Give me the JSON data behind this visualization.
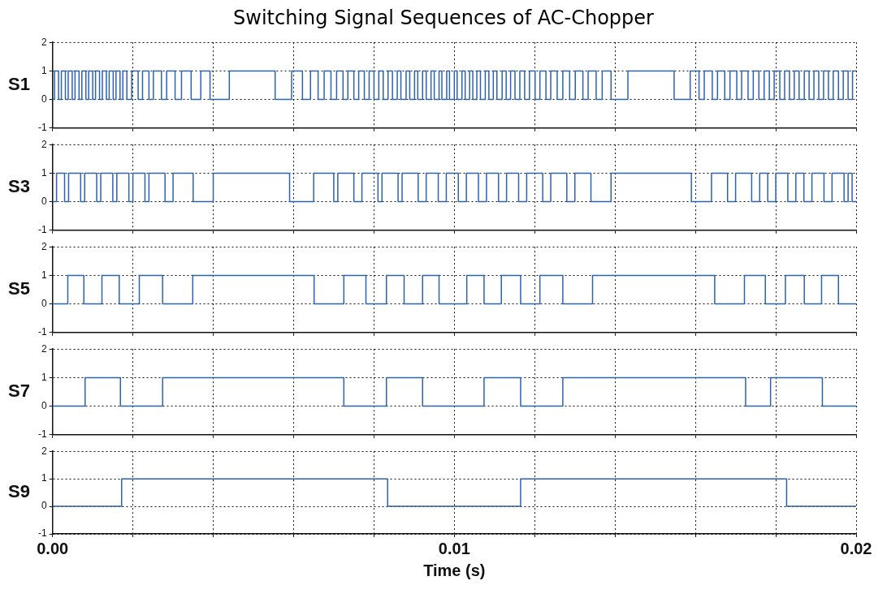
{
  "chart_data": [
    {
      "type": "step",
      "title": "Switching Signal Sequences of AC-Chopper",
      "ylabel": "S1",
      "color": "#2b63b0",
      "xlim": [
        0,
        0.02
      ],
      "ylim": [
        -1,
        2
      ],
      "yticks": [
        -1,
        0,
        1,
        2
      ],
      "grid": true,
      "tick_labels": "y",
      "xticks": [
        {
          "value": 0,
          "label": null
        },
        {
          "value": 0.002,
          "label": null
        },
        {
          "value": 0.004,
          "label": null
        },
        {
          "value": 0.006,
          "label": null
        },
        {
          "value": 0.008,
          "label": null
        },
        {
          "value": 0.01,
          "label": null
        },
        {
          "value": 0.012,
          "label": null
        },
        {
          "value": 0.014,
          "label": null
        },
        {
          "value": 0.016,
          "label": null
        },
        {
          "value": 0.018,
          "label": null
        },
        {
          "value": 0.02,
          "label": null
        }
      ],
      "x": [
        0,
        5e-05,
        0.00015,
        0.00022,
        0.00032,
        0.00039,
        0.00049,
        0.00056,
        0.00066,
        0.00073,
        0.00083,
        0.0009,
        0.001,
        0.00107,
        0.00117,
        0.00124,
        0.00134,
        0.00141,
        0.00151,
        0.00158,
        0.00168,
        0.00175,
        0.00185,
        0.00197,
        0.00213,
        0.00224,
        0.0024,
        0.00251,
        0.00271,
        0.00284,
        0.00305,
        0.00321,
        0.00345,
        0.00369,
        0.00392,
        0.0044,
        0.00554,
        0.00595,
        0.00622,
        0.00642,
        0.00661,
        0.00676,
        0.00693,
        0.00707,
        0.00723,
        0.00735,
        0.0075,
        0.00762,
        0.00776,
        0.00788,
        0.008,
        0.00812,
        0.00823,
        0.00835,
        0.00846,
        0.00858,
        0.00867,
        0.0088,
        0.00889,
        0.00901,
        0.00909,
        0.00921,
        0.0093,
        0.00942,
        0.0095,
        0.00962,
        0.00969,
        0.00981,
        0.00988,
        0.01,
        0.01007,
        0.01019,
        0.01027,
        0.01038,
        0.01046,
        0.01056,
        0.01065,
        0.01077,
        0.01086,
        0.01097,
        0.01106,
        0.01119,
        0.01129,
        0.0114,
        0.01151,
        0.01163,
        0.01175,
        0.01187,
        0.01201,
        0.01213,
        0.01228,
        0.0124,
        0.01256,
        0.0127,
        0.01287,
        0.01301,
        0.0132,
        0.01333,
        0.01353,
        0.01368,
        0.0139,
        0.01432,
        0.01547,
        0.01587,
        0.01609,
        0.01622,
        0.01642,
        0.01655,
        0.01673,
        0.01686,
        0.01703,
        0.01715,
        0.01731,
        0.01744,
        0.01758,
        0.01771,
        0.01784,
        0.01796,
        0.0181,
        0.01822,
        0.01834,
        0.01846,
        0.01858,
        0.01871,
        0.01883,
        0.01895,
        0.01907,
        0.01919,
        0.01931,
        0.01943,
        0.01956,
        0.01968,
        0.0198,
        0.01991,
        0.02
      ],
      "values": [
        0,
        1,
        0,
        1,
        0,
        1,
        0,
        1,
        0,
        1,
        0,
        1,
        0,
        1,
        0,
        1,
        0,
        1,
        0,
        1,
        0,
        1,
        0,
        1,
        0,
        1,
        0,
        1,
        0,
        1,
        0,
        1,
        0,
        1,
        0,
        1,
        0,
        1,
        0,
        1,
        0,
        1,
        0,
        1,
        0,
        1,
        0,
        1,
        0,
        1,
        0,
        1,
        0,
        1,
        0,
        1,
        0,
        1,
        0,
        1,
        0,
        1,
        0,
        1,
        0,
        1,
        0,
        1,
        0,
        1,
        0,
        1,
        0,
        1,
        0,
        1,
        0,
        1,
        0,
        1,
        0,
        1,
        0,
        1,
        0,
        1,
        0,
        1,
        0,
        1,
        0,
        1,
        0,
        1,
        0,
        1,
        0,
        1,
        0,
        1,
        0,
        1,
        0,
        1,
        0,
        1,
        0,
        1,
        0,
        1,
        0,
        1,
        0,
        1,
        0,
        1,
        0,
        1,
        0,
        1,
        0,
        1,
        0,
        1,
        0,
        1,
        0,
        1,
        0,
        1,
        0,
        1,
        0,
        1,
        1
      ]
    },
    {
      "type": "step",
      "ylabel": "S3",
      "color": "#2b63b0",
      "xlim": [
        0,
        0.02
      ],
      "ylim": [
        -1,
        2
      ],
      "yticks": [
        -1,
        0,
        1,
        2
      ],
      "grid": true,
      "tick_labels": "y",
      "xticks": [
        {
          "value": 0,
          "label": null
        },
        {
          "value": 0.002,
          "label": null
        },
        {
          "value": 0.004,
          "label": null
        },
        {
          "value": 0.006,
          "label": null
        },
        {
          "value": 0.008,
          "label": null
        },
        {
          "value": 0.01,
          "label": null
        },
        {
          "value": 0.012,
          "label": null
        },
        {
          "value": 0.014,
          "label": null
        },
        {
          "value": 0.016,
          "label": null
        },
        {
          "value": 0.018,
          "label": null
        },
        {
          "value": 0.02,
          "label": null
        }
      ],
      "x": [
        0,
        0.0001,
        0.0003,
        0.0004,
        0.0007,
        0.0008,
        0.0011,
        0.0012,
        0.0015,
        0.0016,
        0.0019,
        0.002,
        0.0023,
        0.0024,
        0.0028,
        0.003,
        0.0035,
        0.004,
        0.0059,
        0.0065,
        0.007,
        0.0071,
        0.0075,
        0.0077,
        0.0081,
        0.0082,
        0.0086,
        0.0087,
        0.0091,
        0.0093,
        0.0096,
        0.0098,
        0.0101,
        0.0103,
        0.0106,
        0.0108,
        0.0111,
        0.0113,
        0.0116,
        0.0118,
        0.0122,
        0.0124,
        0.0128,
        0.013,
        0.0134,
        0.0139,
        0.0159,
        0.0164,
        0.0168,
        0.017,
        0.0174,
        0.0176,
        0.0178,
        0.018,
        0.0183,
        0.0185,
        0.0187,
        0.0189,
        0.0192,
        0.0194,
        0.0197,
        0.0198,
        0.0199,
        0.02
      ],
      "values": [
        0,
        1,
        0,
        1,
        0,
        1,
        0,
        1,
        0,
        1,
        0,
        1,
        0,
        1,
        0,
        1,
        0,
        1,
        0,
        1,
        0,
        1,
        0,
        1,
        0,
        1,
        0,
        1,
        0,
        1,
        0,
        1,
        0,
        1,
        0,
        1,
        0,
        1,
        0,
        1,
        0,
        1,
        0,
        1,
        0,
        1,
        0,
        1,
        0,
        1,
        0,
        1,
        0,
        1,
        0,
        1,
        0,
        1,
        0,
        1,
        0,
        1,
        0,
        0
      ]
    },
    {
      "type": "step",
      "ylabel": "S5",
      "color": "#2b63b0",
      "xlim": [
        0,
        0.02
      ],
      "ylim": [
        -1,
        2
      ],
      "yticks": [
        -1,
        0,
        1,
        2
      ],
      "grid": true,
      "tick_labels": "y",
      "xticks": [
        {
          "value": 0,
          "label": null
        },
        {
          "value": 0.002,
          "label": null
        },
        {
          "value": 0.004,
          "label": null
        },
        {
          "value": 0.006,
          "label": null
        },
        {
          "value": 0.008,
          "label": null
        },
        {
          "value": 0.01,
          "label": null
        },
        {
          "value": 0.012,
          "label": null
        },
        {
          "value": 0.014,
          "label": null
        },
        {
          "value": 0.016,
          "label": null
        },
        {
          "value": 0.018,
          "label": null
        },
        {
          "value": 0.02,
          "label": null
        }
      ],
      "x": [
        0,
        0.00038,
        0.00078,
        0.00123,
        0.00166,
        0.00216,
        0.00274,
        0.00349,
        0.00651,
        0.00725,
        0.0078,
        0.00831,
        0.00875,
        0.00921,
        0.00962,
        0.01031,
        0.01074,
        0.01117,
        0.01165,
        0.01213,
        0.0127,
        0.01344,
        0.01648,
        0.01722,
        0.01774,
        0.01824,
        0.01871,
        0.01914,
        0.01956,
        0.02
      ],
      "values": [
        0,
        1,
        0,
        1,
        0,
        1,
        0,
        1,
        0,
        1,
        0,
        1,
        0,
        1,
        0,
        1,
        0,
        1,
        0,
        1,
        0,
        1,
        0,
        1,
        0,
        1,
        0,
        1,
        0,
        0
      ]
    },
    {
      "type": "step",
      "ylabel": "S7",
      "color": "#2b63b0",
      "xlim": [
        0,
        0.02
      ],
      "ylim": [
        -1,
        2
      ],
      "yticks": [
        -1,
        0,
        1,
        2
      ],
      "grid": true,
      "tick_labels": "y",
      "xticks": [
        {
          "value": 0,
          "label": null
        },
        {
          "value": 0.002,
          "label": null
        },
        {
          "value": 0.004,
          "label": null
        },
        {
          "value": 0.006,
          "label": null
        },
        {
          "value": 0.008,
          "label": null
        },
        {
          "value": 0.01,
          "label": null
        },
        {
          "value": 0.012,
          "label": null
        },
        {
          "value": 0.014,
          "label": null
        },
        {
          "value": 0.016,
          "label": null
        },
        {
          "value": 0.018,
          "label": null
        },
        {
          "value": 0.02,
          "label": null
        }
      ],
      "x": [
        0,
        0.00081,
        0.00169,
        0.00274,
        0.00725,
        0.00831,
        0.00921,
        0.01074,
        0.01165,
        0.0127,
        0.01725,
        0.01787,
        0.01916,
        0.02
      ],
      "values": [
        0,
        1,
        0,
        1,
        0,
        1,
        0,
        1,
        0,
        1,
        0,
        1,
        0,
        0
      ]
    },
    {
      "type": "step",
      "ylabel": "S9",
      "xlabel": "Time (s)",
      "color": "#2b63b0",
      "xlim": [
        0,
        0.02
      ],
      "ylim": [
        -1,
        2
      ],
      "yticks": [
        -1,
        0,
        1,
        2
      ],
      "grid": true,
      "xticks": [
        {
          "value": 0,
          "label": "0.00"
        },
        {
          "value": 0.002,
          "label": null
        },
        {
          "value": 0.004,
          "label": null
        },
        {
          "value": 0.006,
          "label": null
        },
        {
          "value": 0.008,
          "label": null
        },
        {
          "value": 0.01,
          "label": "0.01"
        },
        {
          "value": 0.012,
          "label": null
        },
        {
          "value": 0.014,
          "label": null
        },
        {
          "value": 0.016,
          "label": null
        },
        {
          "value": 0.018,
          "label": null
        },
        {
          "value": 0.02,
          "label": "0.02"
        }
      ],
      "x": [
        0,
        0.00172,
        0.00834,
        0.01165,
        0.01827,
        0.02
      ],
      "values": [
        0,
        1,
        0,
        1,
        0,
        0
      ]
    }
  ]
}
